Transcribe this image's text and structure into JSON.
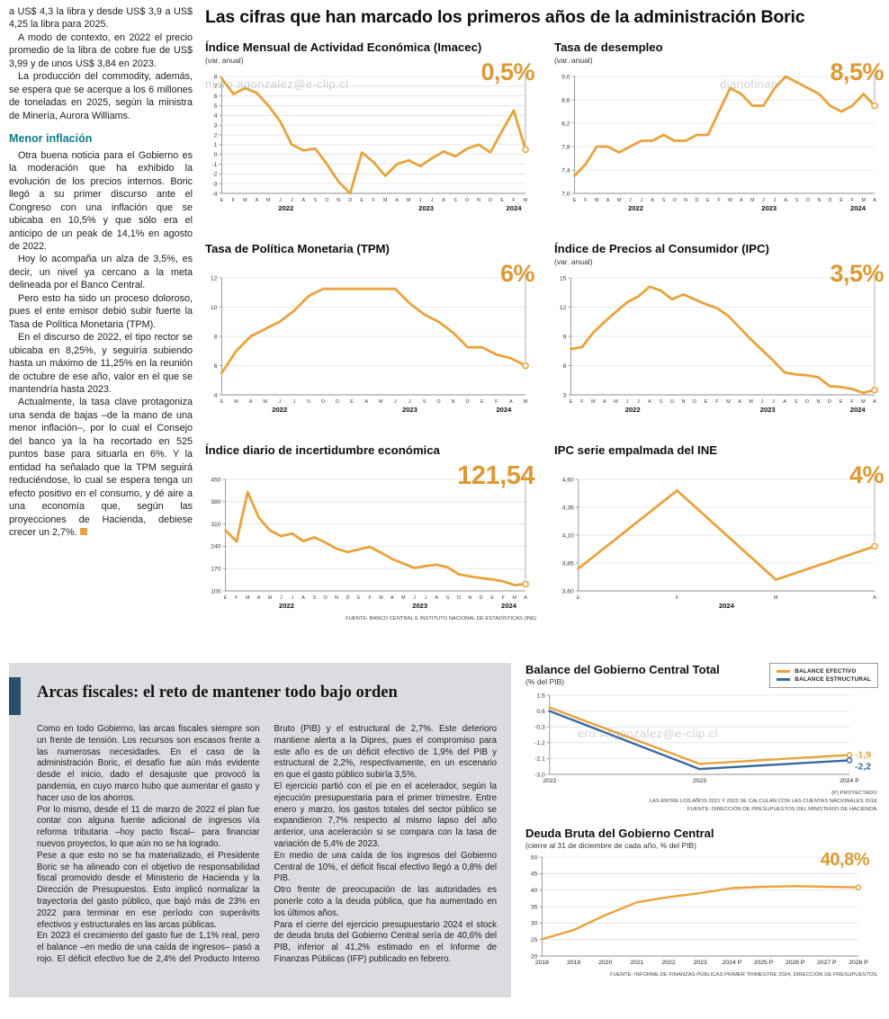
{
  "page": {
    "main_title": "Las cifras que han marcado los primeros años de la administración Boric"
  },
  "colors": {
    "orange": "#E8A33C",
    "blue": "#38699E",
    "teal_subhead": "#0E7C8A",
    "navy_accent": "#2E4D6B",
    "panel_gray": "#dadcdf"
  },
  "left_article": {
    "intro": [
      "a US$ 4,3 la libra y desde US$ 3,9 a US$ 4,25 la libra para 2025.",
      "A modo de contexto, en 2022 el precio promedio de la libra de cobre fue de US$ 3,99 y de unos US$ 3,84 en 2023.",
      "La producción del commodity, además, se espera que se acerque a los 6 millones de toneladas en 2025, según la ministra de Minería, Aurora Williams."
    ],
    "subhead": "Menor inflación",
    "body": [
      "Otra buena noticia para el Gobierno es la moderación que ha exhibido la evolución de los precios internos. Boric llegó a su primer discurso ante el Congreso con una inflación que se ubicaba en 10,5% y que sólo era el anticipo de un peak de 14,1% en agosto de 2022.",
      "Hoy lo acompaña un alza de 3,5%, es decir, un nivel ya cercano a la meta delineada por el Banco Central.",
      "Pero esto ha sido un proceso doloroso, pues el ente emisor debió subir fuerte la Tasa de Política Monetaria (TPM).",
      "En el discurso de 2022, el tipo rector se ubicaba en 8,25%, y seguiría subiendo hasta un máximo de 11,25% en la reunión de octubre de ese año, valor en el que se mantendría hasta 2023.",
      "Actualmente, la tasa clave protagoniza una senda de bajas –de la mano de una menor inflación–, por lo cual el Consejo del banco ya la ha recortado en 525 puntos base para situarla en 6%. Y la entidad ha señalado que la TPM seguirá reduciéndose, lo cual se espera tenga un efecto positivo en el consumo, y dé aire a una economía que, según las proyecciones de Hacienda, debiese crecer un 2,7%."
    ]
  },
  "arcas": {
    "title": "Arcas fiscales: el reto de mantener todo bajo orden",
    "paragraphs": [
      "Como en todo Gobierno, las arcas fiscales siempre son un frente de tensión. Los recursos son escasos frente a las numerosas necesidades. En el caso de la administración Boric, el desafío fue aún más evidente desde el inicio, dado el desajuste que provocó la pandemia, en cuyo marco hubo que aumentar el gasto y hacer uso de los ahorros.",
      "Por lo mismo, desde el 11 de marzo de 2022 el plan fue contar con alguna fuente adicional de ingresos vía reforma tributaria –hoy pacto fiscal– para financiar nuevos proyectos, lo que aún no se ha logrado.",
      "Pese a que esto no se ha materializado, el Presidente Boric se ha alineado con el objetivo de responsabilidad fiscal promovido desde el Ministerio de Hacienda y la Dirección de Presupuestos. Esto implicó normalizar la trayectoria del gasto público, que bajó más de 23% en 2022 para terminar en ese período con superávits efectivos y estructurales en las arcas públicas.",
      "En 2023 el crecimiento del gasto fue de 1,1% real, pero el balance –en medio de una caída de ingresos– pasó a rojo. El déficit efectivo fue de 2,4% del Producto Interno Bruto (PIB) y el estructural de 2,7%. Este deterioro mantiene alerta a la Dipres, pues el compromiso para este año es de un déficit efectivo de 1,9% del PIB y estructural de 2,2%, respectivamente, en un escenario en que el gasto público subiría 3,5%.",
      "El ejercicio partió con el pie en el acelerador, según la ejecución presupuestaria para el primer trimestre. Entre enero y marzo, los gastos totales del sector público se expandieron 7,7% respecto al mismo lapso del año anterior, una aceleración si se compara con la tasa de variación de 5,4% de 2023.",
      "En medio de una caída de los ingresos del Gobierno Central de 10%, el déficit fiscal efectivo llegó a 0,8% del PIB.",
      "Otro frente de preocupación de las autoridades es ponerle coto a la deuda pública, que ha aumentado en los últimos años.",
      "Para el cierre del ejercicio presupuestario 2024 el stock de deuda bruta del Gobierno Central sería de 40,6% del PIB, inferior al 41,2% estimado en el Informe de Finanzas Públicas (IFP) publicado en febrero."
    ]
  },
  "watermarks": [
    "mero.agonzalez@e-clip.cl",
    "diariofinan",
    "ero.#agonzalez@e-clip.cl"
  ],
  "chart_data": [
    {
      "type": "line",
      "title": "Índice Mensual de Actividad Económica (Imacec)",
      "subtitle": "(var. anual)",
      "callout": "0,5%",
      "ylim": [
        -4,
        8
      ],
      "y_ticks": [
        [
          8,
          "8"
        ],
        [
          7,
          "7"
        ],
        [
          6,
          "6"
        ],
        [
          5,
          "5"
        ],
        [
          4,
          "4"
        ],
        [
          3,
          "3"
        ],
        [
          2,
          "2"
        ],
        [
          1,
          "1"
        ],
        [
          0,
          "0"
        ],
        [
          -1,
          "-1"
        ],
        [
          -2,
          "-2"
        ],
        [
          -3,
          "-3"
        ],
        [
          -4,
          "-4"
        ]
      ],
      "x_labels": [
        "E",
        "F",
        "M",
        "A",
        "M",
        "J",
        "J",
        "A",
        "S",
        "O",
        "N",
        "D",
        "E",
        "F",
        "M",
        "A",
        "M",
        "J",
        "J",
        "A",
        "S",
        "O",
        "N",
        "D",
        "E",
        "F",
        "M"
      ],
      "years": [
        {
          "label": "2022",
          "i": 5.5
        },
        {
          "label": "2023",
          "i": 17.5
        },
        {
          "label": "2024",
          "i": 25
        }
      ],
      "cline": true,
      "series": [
        {
          "color": "#E8A33C",
          "values": [
            7.8,
            6.2,
            6.8,
            6.3,
            5.0,
            3.4,
            1.0,
            0.4,
            0.6,
            -1.0,
            -2.8,
            -4.0,
            0.2,
            -0.8,
            -2.2,
            -1.0,
            -0.6,
            -1.2,
            -0.4,
            0.3,
            -0.2,
            0.6,
            1.0,
            0.2,
            2.4,
            4.5,
            0.5
          ]
        }
      ]
    },
    {
      "type": "line",
      "title": "Tasa de desempleo",
      "subtitle": "(var. anual)",
      "callout": "8,5%",
      "ylim": [
        7.0,
        9.0
      ],
      "y_ticks": [
        [
          9.0,
          "9,0"
        ],
        [
          8.6,
          "8,6"
        ],
        [
          8.2,
          "8,2"
        ],
        [
          7.8,
          "7,8"
        ],
        [
          7.4,
          "7,4"
        ],
        [
          7.0,
          "7,0"
        ]
      ],
      "x_labels": [
        "E",
        "F",
        "M",
        "A",
        "M",
        "J",
        "J",
        "A",
        "S",
        "O",
        "N",
        "D",
        "E",
        "F",
        "M",
        "A",
        "M",
        "J",
        "J",
        "A",
        "S",
        "O",
        "N",
        "D",
        "E",
        "F",
        "M",
        "A"
      ],
      "years": [
        {
          "label": "2022",
          "i": 5.5
        },
        {
          "label": "2023",
          "i": 17.5
        },
        {
          "label": "2024",
          "i": 25.5
        }
      ],
      "cline": true,
      "series": [
        {
          "color": "#E8A33C",
          "values": [
            7.3,
            7.5,
            7.8,
            7.8,
            7.7,
            7.8,
            7.9,
            7.9,
            8.0,
            7.9,
            7.9,
            8.0,
            8.0,
            8.4,
            8.8,
            8.7,
            8.5,
            8.5,
            8.8,
            9.0,
            8.9,
            8.8,
            8.7,
            8.5,
            8.4,
            8.5,
            8.7,
            8.5
          ]
        }
      ]
    },
    {
      "type": "line",
      "title": "Tasa de Política Monetaria (TPM)",
      "callout": "6%",
      "ylim": [
        4,
        12
      ],
      "y_ticks": [
        [
          12,
          "12"
        ],
        [
          10,
          "10"
        ],
        [
          8,
          "8"
        ],
        [
          6,
          "6"
        ],
        [
          4,
          "4"
        ]
      ],
      "x_labels": [
        "E",
        "M",
        "A",
        "M",
        "J",
        "J",
        "S",
        "O",
        "D",
        "E",
        "A",
        "M",
        "J",
        "J",
        "S",
        "O",
        "N",
        "D",
        "E",
        "F",
        "A",
        "M"
      ],
      "years": [
        {
          "label": "2022",
          "i": 4
        },
        {
          "label": "2023",
          "i": 13
        },
        {
          "label": "2024",
          "i": 19.5
        }
      ],
      "cline": true,
      "series": [
        {
          "color": "#E8A33C",
          "values": [
            5.5,
            7.0,
            8.0,
            8.5,
            9.0,
            9.75,
            10.75,
            11.25,
            11.25,
            11.25,
            11.25,
            11.25,
            11.25,
            10.25,
            9.5,
            9.0,
            8.25,
            7.25,
            7.25,
            6.75,
            6.5,
            6.0
          ]
        }
      ]
    },
    {
      "type": "line",
      "title": "Índice de Precios al Consumidor (IPC)",
      "subtitle": "(var. anual)",
      "callout": "3,5%",
      "ylim": [
        3,
        15
      ],
      "y_ticks": [
        [
          15,
          "15"
        ],
        [
          12,
          "12"
        ],
        [
          9,
          "9"
        ],
        [
          6,
          "6"
        ],
        [
          3,
          "3"
        ]
      ],
      "x_labels": [
        "E",
        "F",
        "M",
        "A",
        "M",
        "J",
        "J",
        "A",
        "S",
        "O",
        "N",
        "D",
        "E",
        "F",
        "M",
        "A",
        "M",
        "J",
        "J",
        "A",
        "S",
        "O",
        "N",
        "D",
        "E",
        "F",
        "M",
        "A"
      ],
      "years": [
        {
          "label": "2022",
          "i": 5.5
        },
        {
          "label": "2023",
          "i": 17.5
        },
        {
          "label": "2024",
          "i": 25.5
        }
      ],
      "cline": true,
      "series": [
        {
          "color": "#E8A33C",
          "values": [
            7.7,
            7.9,
            9.4,
            10.5,
            11.5,
            12.5,
            13.1,
            14.1,
            13.7,
            12.8,
            13.3,
            12.8,
            12.3,
            11.9,
            11.1,
            9.9,
            8.7,
            7.6,
            6.5,
            5.3,
            5.1,
            5.0,
            4.8,
            3.9,
            3.8,
            3.6,
            3.2,
            3.5
          ]
        }
      ]
    },
    {
      "type": "line",
      "title": "Índice diario de incertidumbre económica",
      "callout": "121,54",
      "source": "FUENTE: BANCO CENTRAL E INSTITUTO NACIONAL DE ESTADÍSTICAS (INE)",
      "ylim": [
        100,
        450
      ],
      "y_ticks": [
        [
          450,
          "450"
        ],
        [
          380,
          "380"
        ],
        [
          310,
          "310"
        ],
        [
          240,
          "240"
        ],
        [
          170,
          "170"
        ],
        [
          100,
          "100"
        ]
      ],
      "x_labels": [
        "E",
        "F",
        "M",
        "A",
        "M",
        "J",
        "J",
        "A",
        "S",
        "O",
        "N",
        "D",
        "E",
        "F",
        "M",
        "A",
        "M",
        "J",
        "J",
        "A",
        "S",
        "O",
        "N",
        "D",
        "E",
        "F",
        "M",
        "A"
      ],
      "years": [
        {
          "label": "2022",
          "i": 5.5
        },
        {
          "label": "2023",
          "i": 17.5
        },
        {
          "label": "2024",
          "i": 25.5
        }
      ],
      "cline": true,
      "series": [
        {
          "color": "#E8A33C",
          "values": [
            290,
            255,
            410,
            330,
            290,
            272,
            280,
            256,
            268,
            252,
            232,
            222,
            230,
            238,
            220,
            200,
            186,
            172,
            178,
            182,
            174,
            152,
            146,
            140,
            136,
            130,
            118,
            121.54
          ]
        }
      ]
    },
    {
      "type": "line",
      "title": "IPC serie empalmada del INE",
      "callout": "4%",
      "ylim": [
        3.6,
        4.6
      ],
      "y_ticks": [
        [
          4.6,
          "4,60"
        ],
        [
          4.35,
          "4,35"
        ],
        [
          4.1,
          "4,10"
        ],
        [
          3.85,
          "3,85"
        ],
        [
          3.6,
          "3,60"
        ]
      ],
      "x_labels": [
        "E",
        "F",
        "M",
        "A"
      ],
      "years": [
        {
          "label": "2024",
          "i": 1.5
        }
      ],
      "cline": true,
      "series": [
        {
          "color": "#E8A33C",
          "values": [
            3.8,
            4.5,
            3.7,
            4.0
          ]
        }
      ]
    },
    {
      "type": "line",
      "title": "Balance del Gobierno Central Total",
      "subtitle": "(% del PIB)",
      "ylim": [
        -3.0,
        1.5
      ],
      "y_ticks": [
        [
          1.5,
          "1,5"
        ],
        [
          0.6,
          "0,6"
        ],
        [
          -0.3,
          "-0,3"
        ],
        [
          -1.2,
          "-1,2"
        ],
        [
          -2.1,
          "-2,1"
        ],
        [
          -3.0,
          "-3,0"
        ]
      ],
      "x_labels": [
        "2022",
        "2023",
        "2024 P"
      ],
      "big_x": true,
      "lw": 2.4,
      "mr": 28,
      "cline": false,
      "notes": [
        "(P) PROYECTADO.",
        "LAS ENTRE LOS AÑOS 2021 Y 2023 SE CALCULAN  CON LAS CUENTAS NACIONALES 2018.",
        "FUENTE: DIRECCIÓN DE PRESUPUESTOS DEL MINISTERIO DE HACIENDA."
      ],
      "series": [
        {
          "name": "BALANCE EFECTIVO",
          "color": "#E8A33C",
          "values": [
            0.8,
            -2.4,
            -1.9
          ],
          "end_label": "-1,9"
        },
        {
          "name": "BALANCE ESTRUCTURAL",
          "color": "#38699E",
          "values": [
            0.6,
            -2.7,
            -2.2
          ],
          "end_label": "-2,2"
        }
      ]
    },
    {
      "type": "line",
      "title": "Deuda Bruta del Gobierno Central",
      "subtitle": "(cierre al 31 de diciembre de cada año, % del PIB)",
      "callout": "40,8%",
      "source": "FUENTE: INFORME DE FINANZAS PÚBLICAS PRIMER TRIMESTRE 2024, DIRECCIÓN DE PRESUPUESTOS.",
      "ylim": [
        20,
        50
      ],
      "y_ticks": [
        [
          50,
          "50"
        ],
        [
          45,
          "45"
        ],
        [
          40,
          "40"
        ],
        [
          35,
          "35"
        ],
        [
          30,
          "30"
        ],
        [
          25,
          "25"
        ],
        [
          20,
          "20"
        ]
      ],
      "x_labels": [
        "2018",
        "2019",
        "2020",
        "2021",
        "2022",
        "2023",
        "2024 P",
        "2025 P",
        "2026 P",
        "2027 P",
        "2028 P"
      ],
      "big_x": true,
      "lw": 2.4,
      "mr": 18,
      "cline": false,
      "series": [
        {
          "color": "#E8A33C",
          "values": [
            25.1,
            27.9,
            32.4,
            36.3,
            37.9,
            39.1,
            40.6,
            41.0,
            41.2,
            41.0,
            40.8
          ]
        }
      ]
    }
  ]
}
